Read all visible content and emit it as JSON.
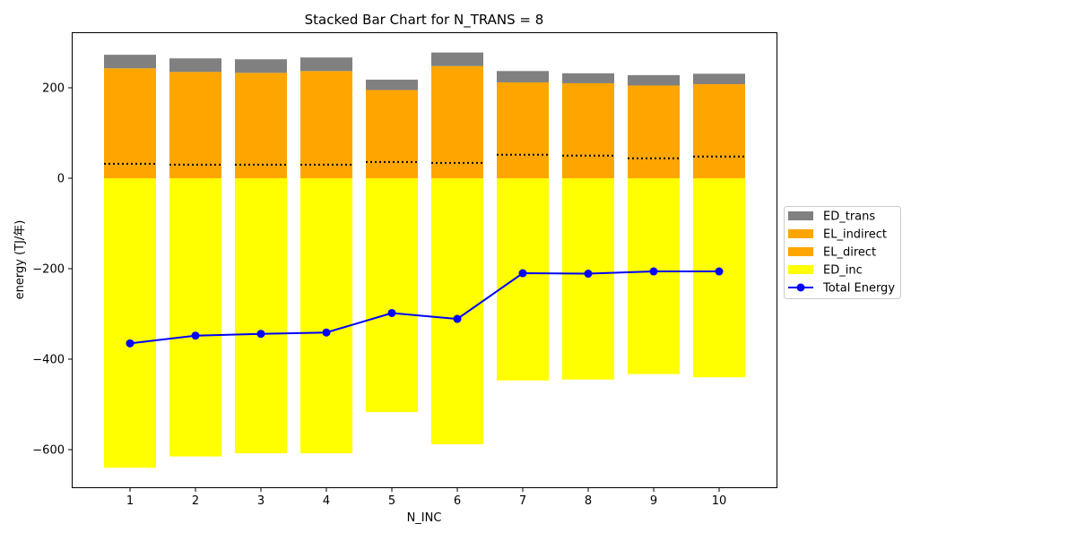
{
  "chart_data": {
    "type": "bar",
    "stacked": true,
    "title": "Stacked Bar Chart for N_TRANS = 8",
    "xlabel": "N_INC",
    "ylabel": "energy (TJ/年)",
    "categories": [
      "1",
      "2",
      "3",
      "4",
      "5",
      "6",
      "7",
      "8",
      "9",
      "10"
    ],
    "ylim": [
      -685,
      322
    ],
    "yticks": [
      200,
      0,
      -200,
      -400,
      -600
    ],
    "ytick_labels": [
      "200",
      "0",
      "−200",
      "−400",
      "−600"
    ],
    "grid": false,
    "legend_position": "right",
    "series": [
      {
        "name": "ED_trans",
        "kind": "bar",
        "color": "#808080",
        "values": [
          30,
          30,
          30,
          30,
          23,
          30,
          25,
          22,
          23,
          23
        ]
      },
      {
        "name": "EL_indirect",
        "kind": "bar",
        "color": "#ffa500",
        "values": [
          211,
          205,
          203,
          207,
          159,
          214,
          160,
          160,
          161,
          160
        ]
      },
      {
        "name": "EL_direct",
        "kind": "bar",
        "color": "#ffa500",
        "values": [
          32,
          30,
          30,
          30,
          36,
          34,
          52,
          50,
          44,
          48
        ]
      },
      {
        "name": "ED_inc",
        "kind": "bar",
        "color": "#ffff00",
        "values": [
          -640,
          -615,
          -608,
          -608,
          -517,
          -588,
          -447,
          -445,
          -433,
          -440
        ]
      },
      {
        "name": "Total Energy",
        "kind": "line",
        "color": "#0000ff",
        "values": [
          -365,
          -348,
          -344,
          -341,
          -298,
          -311,
          -210,
          -211,
          -206,
          -206
        ]
      }
    ]
  }
}
